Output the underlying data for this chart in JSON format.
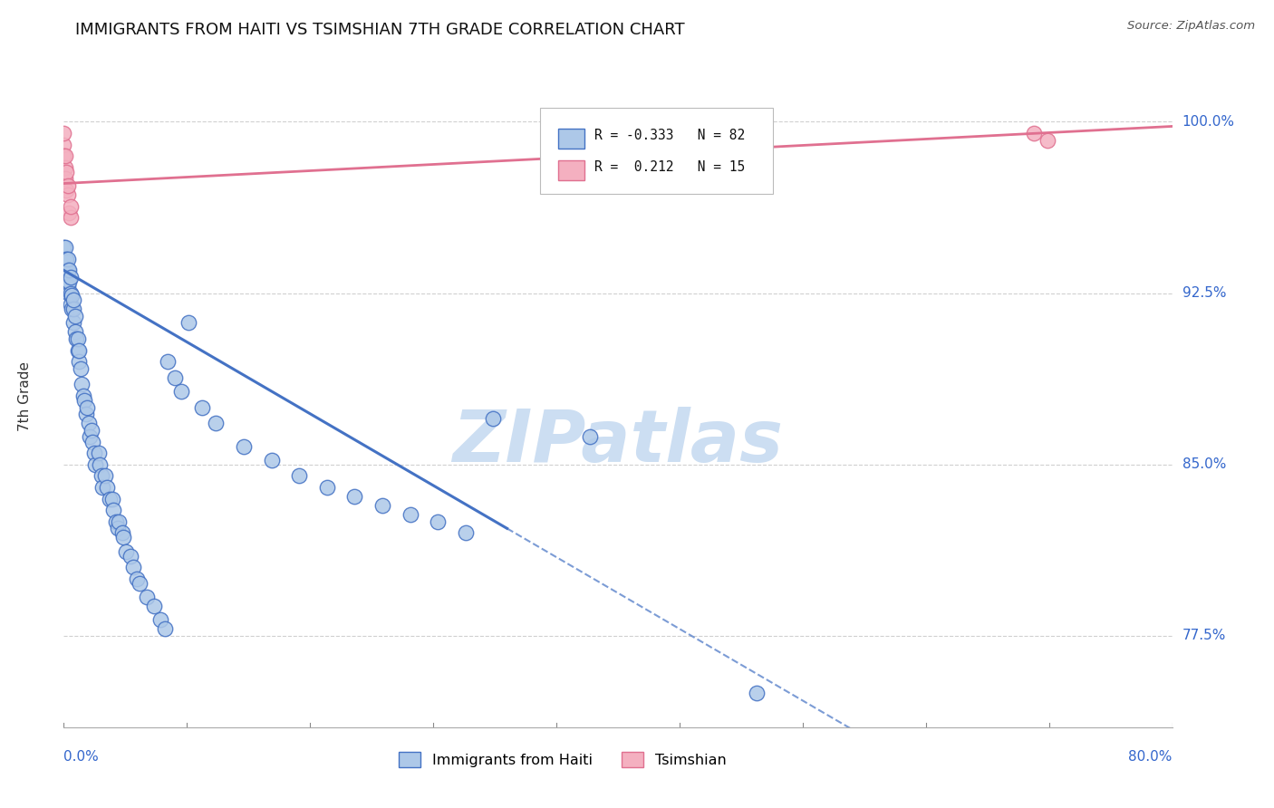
{
  "title": "IMMIGRANTS FROM HAITI VS TSIMSHIAN 7TH GRADE CORRELATION CHART",
  "source": "Source: ZipAtlas.com",
  "ylabel": "7th Grade",
  "yticks": [
    0.775,
    0.85,
    0.925,
    1.0
  ],
  "ytick_labels": [
    "77.5%",
    "85.0%",
    "92.5%",
    "100.0%"
  ],
  "xmin": 0.0,
  "xmax": 0.8,
  "ymin": 0.735,
  "ymax": 1.025,
  "haiti_color": "#adc8e8",
  "haiti_edge_color": "#4472c4",
  "tsimshian_color": "#f4b0c0",
  "tsimshian_edge_color": "#e07090",
  "haiti_R": -0.333,
  "haiti_N": 82,
  "tsimshian_R": 0.212,
  "tsimshian_N": 15,
  "haiti_x": [
    0.0,
    0.0,
    0.001,
    0.001,
    0.001,
    0.002,
    0.002,
    0.002,
    0.003,
    0.003,
    0.003,
    0.004,
    0.004,
    0.004,
    0.005,
    0.005,
    0.005,
    0.006,
    0.006,
    0.007,
    0.007,
    0.007,
    0.008,
    0.008,
    0.009,
    0.01,
    0.01,
    0.011,
    0.011,
    0.012,
    0.013,
    0.014,
    0.015,
    0.016,
    0.017,
    0.018,
    0.019,
    0.02,
    0.021,
    0.022,
    0.023,
    0.025,
    0.026,
    0.027,
    0.028,
    0.03,
    0.031,
    0.033,
    0.035,
    0.036,
    0.038,
    0.039,
    0.04,
    0.042,
    0.043,
    0.045,
    0.048,
    0.05,
    0.053,
    0.055,
    0.06,
    0.065,
    0.07,
    0.073,
    0.075,
    0.08,
    0.085,
    0.09,
    0.1,
    0.11,
    0.13,
    0.15,
    0.17,
    0.19,
    0.21,
    0.23,
    0.25,
    0.27,
    0.29,
    0.31,
    0.38,
    0.5
  ],
  "haiti_y": [
    0.94,
    0.945,
    0.935,
    0.94,
    0.945,
    0.93,
    0.935,
    0.94,
    0.928,
    0.935,
    0.94,
    0.925,
    0.93,
    0.935,
    0.92,
    0.925,
    0.932,
    0.918,
    0.924,
    0.912,
    0.918,
    0.922,
    0.908,
    0.915,
    0.905,
    0.9,
    0.905,
    0.895,
    0.9,
    0.892,
    0.885,
    0.88,
    0.878,
    0.872,
    0.875,
    0.868,
    0.862,
    0.865,
    0.86,
    0.855,
    0.85,
    0.855,
    0.85,
    0.845,
    0.84,
    0.845,
    0.84,
    0.835,
    0.835,
    0.83,
    0.825,
    0.822,
    0.825,
    0.82,
    0.818,
    0.812,
    0.81,
    0.805,
    0.8,
    0.798,
    0.792,
    0.788,
    0.782,
    0.778,
    0.895,
    0.888,
    0.882,
    0.912,
    0.875,
    0.868,
    0.858,
    0.852,
    0.845,
    0.84,
    0.836,
    0.832,
    0.828,
    0.825,
    0.82,
    0.87,
    0.862,
    0.75
  ],
  "tsimshian_x": [
    0.0,
    0.0,
    0.0,
    0.001,
    0.001,
    0.001,
    0.002,
    0.002,
    0.003,
    0.003,
    0.004,
    0.005,
    0.005,
    0.7,
    0.71
  ],
  "tsimshian_y": [
    0.99,
    0.985,
    0.995,
    0.98,
    0.985,
    0.975,
    0.97,
    0.978,
    0.968,
    0.972,
    0.96,
    0.958,
    0.963,
    0.995,
    0.992
  ],
  "trend_haiti_x0": 0.0,
  "trend_haiti_y0": 0.935,
  "trend_haiti_x1": 0.32,
  "trend_haiti_y1": 0.822,
  "trend_solid_end_x": 0.32,
  "trend_dash_end_x": 0.8,
  "trend_tsim_y0": 0.973,
  "trend_tsim_y1": 0.998,
  "grid_color": "#d0d0d0",
  "watermark_color": [
    0.8,
    0.87,
    0.95
  ]
}
